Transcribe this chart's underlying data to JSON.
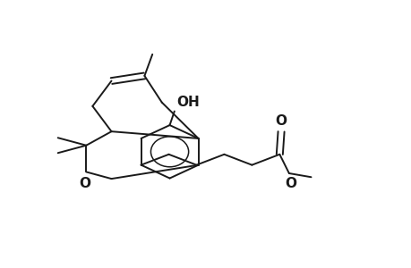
{
  "background": "#ffffff",
  "line_color": "#1a1a1a",
  "line_width": 1.4,
  "font_size": 10,
  "xlim": [
    0.0,
    13.0
  ],
  "ylim": [
    0.5,
    11.0
  ]
}
